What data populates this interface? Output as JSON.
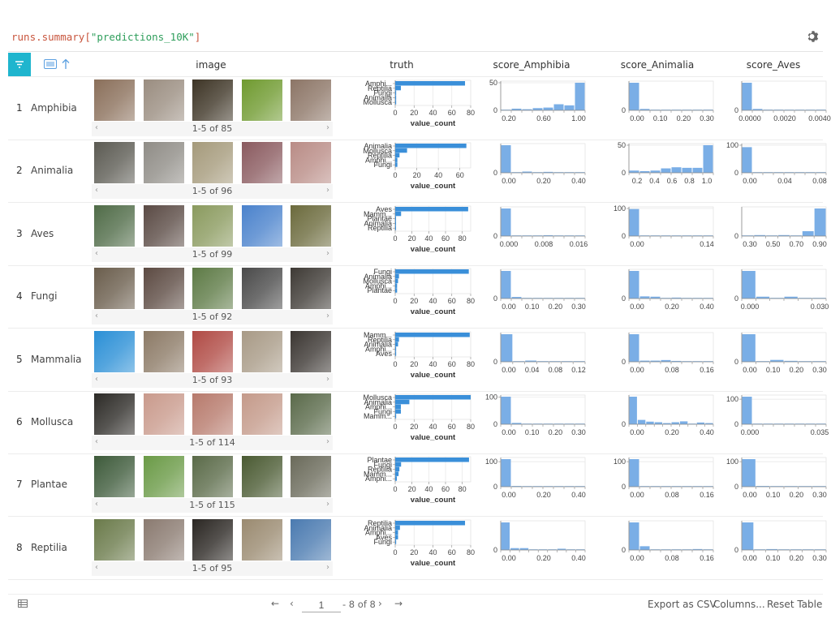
{
  "query": {
    "fn": "runs.summary",
    "open": "[",
    "key": "\"predictions_10K\"",
    "close": "]"
  },
  "header": {
    "columns": [
      "image",
      "truth",
      "score_Amphibia",
      "score_Animalia",
      "score_Aves"
    ]
  },
  "colors": {
    "accent": "#1fb5ce",
    "bar_truth": "#3a8fd9",
    "bar_hist": "#7aaee6",
    "axis": "#888888"
  },
  "rows": [
    {
      "index": "1",
      "label": "Amphibia",
      "pager": "1-5 of 85",
      "thumbs": [
        "#8a6f5a",
        "#9a8d80",
        "#3d3425",
        "#6f9a2f",
        "#8c7566"
      ],
      "truth": {
        "labels": [
          "Amphi...",
          "Reptilia",
          "Fungi",
          "Animalia",
          "Mollusca"
        ],
        "values": [
          74,
          6,
          1,
          1,
          1
        ],
        "xmax": 80,
        "ticks": [
          "0",
          "20",
          "40",
          "60",
          "80"
        ],
        "xlabel": "value_count"
      },
      "hist": [
        {
          "ymax": 50,
          "ylabels": [
            "50",
            "0"
          ],
          "xticks": [
            "0.20",
            "0.60",
            "1.00"
          ],
          "bins": [
            1,
            3,
            2,
            4,
            5,
            11,
            9,
            50
          ]
        },
        {
          "ymax": null,
          "ylabels": [
            "0"
          ],
          "xticks": [
            "0.00",
            "0.10",
            "0.20",
            "0.30"
          ],
          "bins": [
            80,
            4,
            1,
            1,
            1,
            0,
            0,
            2
          ]
        },
        {
          "ymax": null,
          "ylabels": [
            "0"
          ],
          "xticks": [
            "0.0000",
            "0.0020",
            "0.0040"
          ],
          "bins": [
            80,
            4,
            2,
            2,
            0,
            1,
            0,
            2
          ]
        }
      ]
    },
    {
      "index": "2",
      "label": "Animalia",
      "pager": "1-5 of 96",
      "thumbs": [
        "#5b5a52",
        "#8f8c86",
        "#a59a7b",
        "#8a5a5f",
        "#b98c86"
      ],
      "truth": {
        "labels": [
          "Animalia",
          "Mollusca",
          "Reptilia",
          "Amphi...",
          "Fungi"
        ],
        "values": [
          66,
          11,
          4,
          2,
          2
        ],
        "xmax": 70,
        "ticks": [
          "0",
          "20",
          "40",
          "60"
        ],
        "xlabel": "value_count"
      },
      "hist": [
        {
          "ymax": null,
          "ylabels": [
            "0"
          ],
          "xticks": [
            "0.00",
            "0.20",
            "0.40"
          ],
          "bins": [
            90,
            2,
            4,
            0,
            3,
            0,
            0,
            1
          ]
        },
        {
          "ymax": 50,
          "ylabels": [
            "50",
            "0"
          ],
          "xticks": [
            "0.2",
            "0.4",
            "0.6",
            "0.8",
            "1.0"
          ],
          "bins": [
            4,
            3,
            4,
            8,
            10,
            9,
            9,
            50
          ]
        },
        {
          "ymax": 100,
          "ylabels": [
            "100",
            "0"
          ],
          "xticks": [
            "0.00",
            "0.04",
            "0.08"
          ],
          "bins": [
            93,
            0,
            0,
            0,
            0,
            0,
            0,
            1
          ]
        }
      ]
    },
    {
      "index": "3",
      "label": "Aves",
      "pager": "1-5 of 99",
      "thumbs": [
        "#4f6b47",
        "#5a4a44",
        "#8a9a5e",
        "#4a82cc",
        "#6b6a3c"
      ],
      "truth": {
        "labels": [
          "Aves",
          "Mamm...",
          "Plantae",
          "Animalia",
          "Reptilia"
        ],
        "values": [
          87,
          7,
          1,
          1,
          1
        ],
        "xmax": 90,
        "ticks": [
          "0",
          "20",
          "40",
          "60",
          "80"
        ],
        "xlabel": "value_count"
      },
      "hist": [
        {
          "ymax": null,
          "ylabels": [
            "0"
          ],
          "xticks": [
            "0.000",
            "0.008",
            "0.016"
          ],
          "bins": [
            95,
            1,
            2,
            0,
            3,
            1,
            1,
            1
          ]
        },
        {
          "ymax": 100,
          "ylabels": [
            "100",
            "0"
          ],
          "xticks": [
            "0.00",
            "0.14"
          ],
          "bins": [
            98,
            0,
            0,
            0,
            0,
            0,
            0,
            1
          ]
        },
        {
          "ymax": null,
          "ylabels": [
            "0"
          ],
          "xticks": [
            "0.30",
            "0.50",
            "0.70",
            "0.90"
          ],
          "bins": [
            2,
            3,
            2,
            3,
            2,
            15,
            85
          ]
        }
      ]
    },
    {
      "index": "4",
      "label": "Fungi",
      "pager": "1-5 of 92",
      "thumbs": [
        "#6a5d4c",
        "#5c4a42",
        "#5d7a45",
        "#4a4a4a",
        "#3e3a35"
      ],
      "truth": {
        "labels": [
          "Fungi",
          "Animalia",
          "Mollusca",
          "Amphi...",
          "Plantae"
        ],
        "values": [
          78,
          4,
          3,
          2,
          2
        ],
        "xmax": 80,
        "ticks": [
          "0",
          "20",
          "40",
          "60",
          "80"
        ],
        "xlabel": "value_count"
      },
      "hist": [
        {
          "ymax": null,
          "ylabels": [
            "0"
          ],
          "xticks": [
            "0.00",
            "0.10",
            "0.20",
            "0.30"
          ],
          "bins": [
            88,
            5,
            1,
            0,
            0,
            0,
            1,
            1
          ]
        },
        {
          "ymax": null,
          "ylabels": [
            "0"
          ],
          "xticks": [
            "0.00",
            "0.20",
            "0.40"
          ],
          "bins": [
            90,
            7,
            6,
            0,
            3,
            0,
            0,
            1
          ]
        },
        {
          "ymax": null,
          "ylabels": [
            "0"
          ],
          "xticks": [
            "0.000",
            "0.030"
          ],
          "bins": [
            90,
            6,
            0,
            6,
            0,
            1
          ]
        }
      ]
    },
    {
      "index": "5",
      "label": "Mammalia",
      "pager": "1-5 of 93",
      "thumbs": [
        "#2a8fd6",
        "#8c7a66",
        "#b04a44",
        "#a89a86",
        "#3b3632"
      ],
      "truth": {
        "labels": [
          "Mamm...",
          "Reptilia",
          "Animalia",
          "Amphi...",
          "Aves"
        ],
        "values": [
          79,
          4,
          3,
          1,
          1
        ],
        "xmax": 80,
        "ticks": [
          "0",
          "20",
          "40",
          "60",
          "80"
        ],
        "xlabel": "value_count"
      },
      "hist": [
        {
          "ymax": null,
          "ylabels": [
            "0"
          ],
          "xticks": [
            "0.00",
            "0.04",
            "0.08",
            "0.12"
          ],
          "bins": [
            90,
            2,
            4,
            1,
            1,
            1,
            1
          ]
        },
        {
          "ymax": null,
          "ylabels": [
            "0"
          ],
          "xticks": [
            "0.00",
            "0.08",
            "0.16"
          ],
          "bins": [
            95,
            4,
            4,
            6,
            3,
            0,
            0,
            0
          ]
        },
        {
          "ymax": null,
          "ylabels": [
            "0"
          ],
          "xticks": [
            "0.00",
            "0.10",
            "0.20",
            "0.30"
          ],
          "bins": [
            88,
            2,
            6,
            3,
            0,
            1
          ]
        }
      ]
    },
    {
      "index": "6",
      "label": "Mollusca",
      "pager": "1-5 of 114",
      "thumbs": [
        "#2c2a26",
        "#c99a8c",
        "#b77a6c",
        "#c49a8a",
        "#5a6a4a"
      ],
      "truth": {
        "labels": [
          "Mollusca",
          "Animalia",
          "Amphi...",
          "Fungi",
          "Mamm..."
        ],
        "values": [
          80,
          15,
          6,
          6,
          1
        ],
        "xmax": 80,
        "ticks": [
          "0",
          "20",
          "40",
          "60",
          "80"
        ],
        "xlabel": "value_count"
      },
      "hist": [
        {
          "ymax": 100,
          "ylabels": [
            "100",
            "0"
          ],
          "xticks": [
            "0.00",
            "0.10",
            "0.20",
            "0.30"
          ],
          "bins": [
            102,
            5,
            1,
            1,
            1,
            2,
            2,
            1
          ]
        },
        {
          "ymax": null,
          "ylabels": [
            "0"
          ],
          "xticks": [
            "0.00",
            "0.20",
            "0.40"
          ],
          "bins": [
            95,
            15,
            9,
            7,
            4,
            7,
            10,
            1,
            6,
            4
          ]
        },
        {
          "ymax": 100,
          "ylabels": [
            "100",
            "0"
          ],
          "xticks": [
            "0.000",
            "0.035"
          ],
          "bins": [
            110,
            0,
            0,
            0,
            0,
            0,
            0,
            0
          ]
        }
      ]
    },
    {
      "index": "7",
      "label": "Plantae",
      "pager": "1-5 of 115",
      "thumbs": [
        "#3d5a3a",
        "#6a9a46",
        "#5a6a48",
        "#4a5a32",
        "#6a6a5a"
      ],
      "truth": {
        "labels": [
          "Plantae",
          "Fungi",
          "Reptilia",
          "Mamm...",
          "Amphi..."
        ],
        "values": [
          88,
          7,
          5,
          4,
          2
        ],
        "xmax": 90,
        "ticks": [
          "0",
          "20",
          "40",
          "60",
          "80"
        ],
        "xlabel": "value_count"
      },
      "hist": [
        {
          "ymax": 100,
          "ylabels": [
            "100",
            "0"
          ],
          "xticks": [
            "0.00",
            "0.20",
            "0.40"
          ],
          "bins": [
            110,
            3,
            0,
            1,
            0,
            0,
            0,
            0
          ]
        },
        {
          "ymax": 100,
          "ylabels": [
            "100",
            "0"
          ],
          "xticks": [
            "0.00",
            "0.08",
            "0.16"
          ],
          "bins": [
            110,
            2,
            0,
            0,
            0,
            0,
            0,
            1
          ]
        },
        {
          "ymax": 100,
          "ylabels": [
            "100",
            "0"
          ],
          "xticks": [
            "0.00",
            "0.10",
            "0.20",
            "0.30"
          ],
          "bins": [
            110,
            3,
            0,
            0,
            0,
            2
          ]
        }
      ]
    },
    {
      "index": "8",
      "label": "Reptilia",
      "pager": "1-5 of 95",
      "thumbs": [
        "#6a7a4a",
        "#8a7a70",
        "#2a2622",
        "#9a8a70",
        "#4a7ab0"
      ],
      "truth": {
        "labels": [
          "Reptilia",
          "Animalia",
          "Amphi...",
          "Aves",
          "Fungi"
        ],
        "values": [
          74,
          5,
          3,
          3,
          1
        ],
        "xmax": 80,
        "ticks": [
          "0",
          "20",
          "40",
          "60",
          "80"
        ],
        "xlabel": "value_count"
      },
      "hist": [
        {
          "ymax": null,
          "ylabels": [
            "0"
          ],
          "xticks": [
            "0.00",
            "0.20",
            "0.40"
          ],
          "bins": [
            88,
            6,
            6,
            0,
            2,
            0,
            4,
            1,
            1
          ]
        },
        {
          "ymax": null,
          "ylabels": [
            "0"
          ],
          "xticks": [
            "0.00",
            "0.08",
            "0.16"
          ],
          "bins": [
            88,
            12,
            1,
            0,
            0,
            0,
            3,
            1
          ]
        },
        {
          "ymax": null,
          "ylabels": [
            "0"
          ],
          "xticks": [
            "0.00",
            "0.10",
            "0.20",
            "0.30"
          ],
          "bins": [
            92,
            0,
            3,
            1,
            1,
            1,
            1
          ]
        }
      ]
    }
  ],
  "footer": {
    "first": "←",
    "prev": "‹",
    "page": "1",
    "of": "- 8 of 8",
    "next": "›",
    "last": "→",
    "export": "Export as CSV",
    "columns": "Columns...",
    "reset": "Reset Table"
  }
}
